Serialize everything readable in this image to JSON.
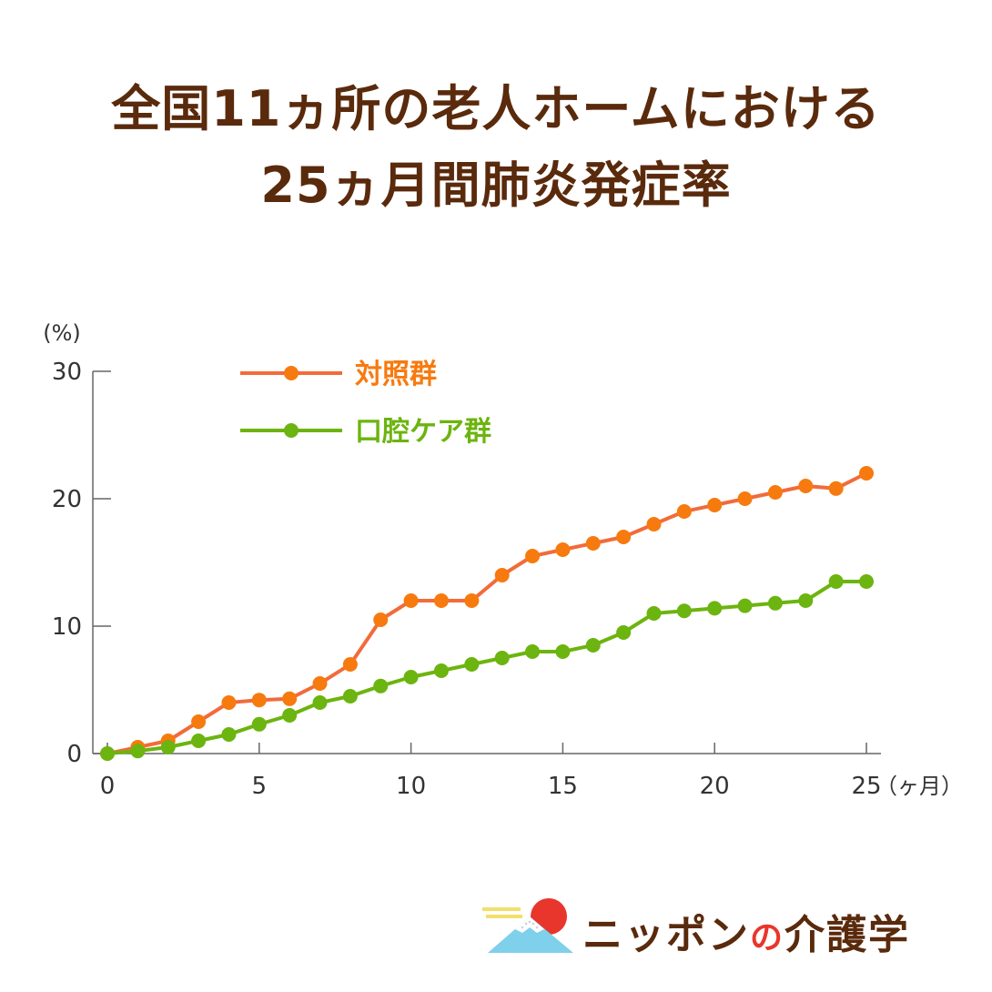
{
  "title": {
    "line1": "全国11ヵ所の老人ホームにおける",
    "line2": "25ヵ月間肺炎発症率"
  },
  "chart_data": {
    "type": "line",
    "ylabel": "(%)",
    "xlabel": "（ヶ月）",
    "xlim": [
      0,
      25
    ],
    "ylim": [
      0,
      30
    ],
    "x_ticks": [
      0,
      5,
      10,
      15,
      20,
      25
    ],
    "y_ticks": [
      0,
      10,
      20,
      30
    ],
    "grid": false,
    "legend_position": "top-left",
    "x": [
      0,
      1,
      2,
      3,
      4,
      5,
      6,
      7,
      8,
      9,
      10,
      11,
      12,
      13,
      14,
      15,
      16,
      17,
      18,
      19,
      20,
      21,
      22,
      23,
      24,
      25
    ],
    "series": [
      {
        "name": "対照群",
        "color": "#f26b3a",
        "marker_color": "#f77a0f",
        "values": [
          0,
          0.5,
          1,
          2.5,
          4,
          4.2,
          4.3,
          5.5,
          7,
          10.5,
          12,
          12,
          12,
          14,
          15.5,
          16,
          16.5,
          17,
          18,
          19,
          19.5,
          20,
          20.5,
          21,
          20.8,
          22
        ]
      },
      {
        "name": "口腔ケア群",
        "color": "#6cb40f",
        "marker_color": "#6cb40f",
        "values": [
          0,
          0.2,
          0.5,
          1,
          1.5,
          2.3,
          3,
          4,
          4.5,
          5.3,
          6,
          6.5,
          7,
          7.5,
          8,
          8,
          8.5,
          9.5,
          11,
          11.2,
          11.4,
          11.6,
          11.8,
          12,
          13.5,
          13.5
        ]
      }
    ]
  },
  "brand": {
    "name_part1": "ニッポン",
    "name_no": "の",
    "name_part2": "介護学",
    "colors": {
      "text": "#5a2a0c",
      "accent": "#e8362c",
      "sky": "#7fd0ea",
      "sun": "#e8362c",
      "cloud": "#f3df6b"
    }
  }
}
